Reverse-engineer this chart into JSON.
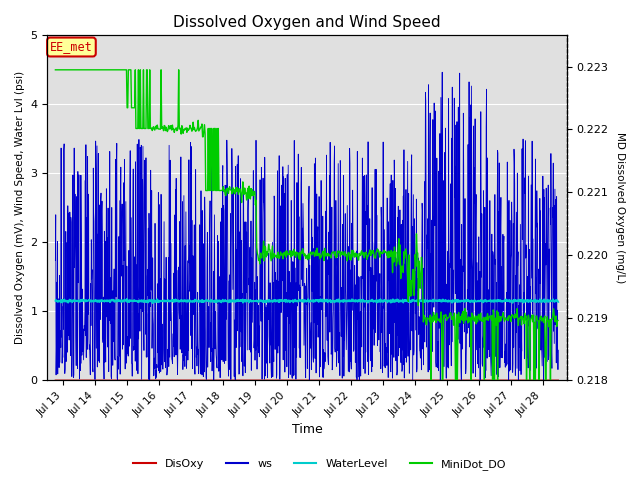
{
  "title": "Dissolved Oxygen and Wind Speed",
  "xlabel": "Time",
  "ylabel_left": "Dissolved Oxygen (mV), Wind Speed, Water Lvl (psi)",
  "ylabel_right": "MD Dissolved Oxygen (mg/L)",
  "ylim_left": [
    0.0,
    5.0
  ],
  "ylim_right": [
    0.218,
    0.2235
  ],
  "xtick_labels": [
    "Jul 13",
    "Jul 14",
    "Jul 15",
    "Jul 16",
    "Jul 17",
    "Jul 18",
    "Jul 19",
    "Jul 20",
    "Jul 21",
    "Jul 22",
    "Jul 23",
    "Jul 24",
    "Jul 25",
    "Jul 26",
    "Jul 27",
    "Jul 28"
  ],
  "legend_items": [
    "DisOxy",
    "ws",
    "WaterLevel",
    "MiniDot_DO"
  ],
  "legend_colors": [
    "#cc0000",
    "#0000cc",
    "#00cccc",
    "#00cc00"
  ],
  "annotation_text": "EE_met",
  "annotation_color": "#cc0000",
  "annotation_bg": "#ffff99",
  "bg_color": "#e0e0e0",
  "grid_color": "#ffffff",
  "title_fontsize": 11
}
